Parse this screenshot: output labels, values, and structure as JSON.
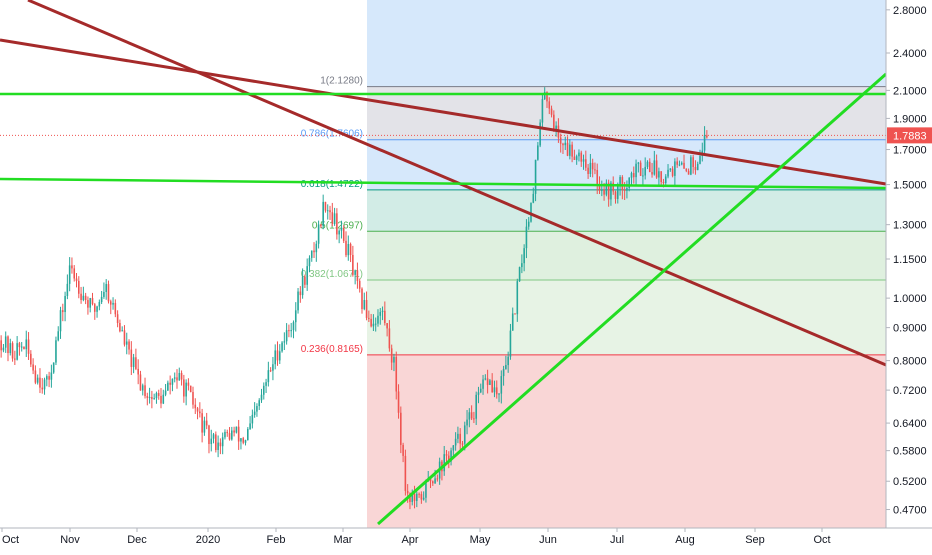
{
  "chart_data": {
    "type": "candlestick",
    "scale": "log",
    "y_range": [
      0.44,
      2.9
    ],
    "price_axis_ticks": [
      "2.8000",
      "2.4000",
      "2.1000",
      "1.9000",
      "1.7000",
      "1.5000",
      "1.3000",
      "1.1500",
      "1.0000",
      "0.9000",
      "0.8000",
      "0.7200",
      "0.6400",
      "0.5800",
      "0.5200",
      "0.4700"
    ],
    "time_axis_ticks": [
      "Oct",
      "Nov",
      "Dec",
      "2020",
      "Feb",
      "Mar",
      "Apr",
      "May",
      "Jun",
      "Jul",
      "Aug",
      "Sep",
      "Oct"
    ],
    "last_price": "1.7883",
    "colors": {
      "up": "#26a69a",
      "down": "#ef5350",
      "trendline_red": "#a52a2a",
      "trendline_green": "#22dd22",
      "price_label_bg": "#ef5350"
    },
    "fibonacci": [
      {
        "label": "1(2.1280)",
        "level": 1,
        "price": 2.128,
        "color": "#787b86",
        "fill": "#e3e3e8"
      },
      {
        "label": "0.786(1.7606)",
        "level": 0.786,
        "price": 1.7606,
        "color": "#5b9cf6",
        "fill": "#d6e8fb"
      },
      {
        "label": "0.618(1.4722)",
        "level": 0.618,
        "price": 1.4722,
        "color": "#089981",
        "fill": "#d2ece6"
      },
      {
        "label": "0.5(1.2697)",
        "level": 0.5,
        "price": 1.2697,
        "color": "#4caf50",
        "fill": "#dff0df"
      },
      {
        "label": "0.382(1.0671)",
        "level": 0.382,
        "price": 1.0671,
        "color": "#81c784",
        "fill": "#e7f3e5"
      },
      {
        "label": "0.236(0.8165)",
        "level": 0.236,
        "price": 0.8165,
        "color": "#f23645",
        "fill": "#f9d6d6"
      }
    ],
    "candle_anchor_prices": [
      0.86,
      0.82,
      0.85,
      0.76,
      0.73,
      0.9,
      1.12,
      1.02,
      0.95,
      1.05,
      0.93,
      0.82,
      0.74,
      0.7,
      0.7,
      0.76,
      0.72,
      0.66,
      0.6,
      0.6,
      0.62,
      0.6,
      0.66,
      0.75,
      0.84,
      0.9,
      1.05,
      1.18,
      1.42,
      1.3,
      1.18,
      1.0,
      0.92,
      0.95,
      0.78,
      0.5,
      0.48,
      0.52,
      0.55,
      0.58,
      0.62,
      0.68,
      0.75,
      0.7,
      0.86,
      1.15,
      1.5,
      2.13,
      1.8,
      1.7,
      1.68,
      1.58,
      1.48,
      1.46,
      1.52,
      1.58,
      1.62,
      1.55,
      1.6,
      1.58,
      1.63,
      1.79
    ]
  }
}
